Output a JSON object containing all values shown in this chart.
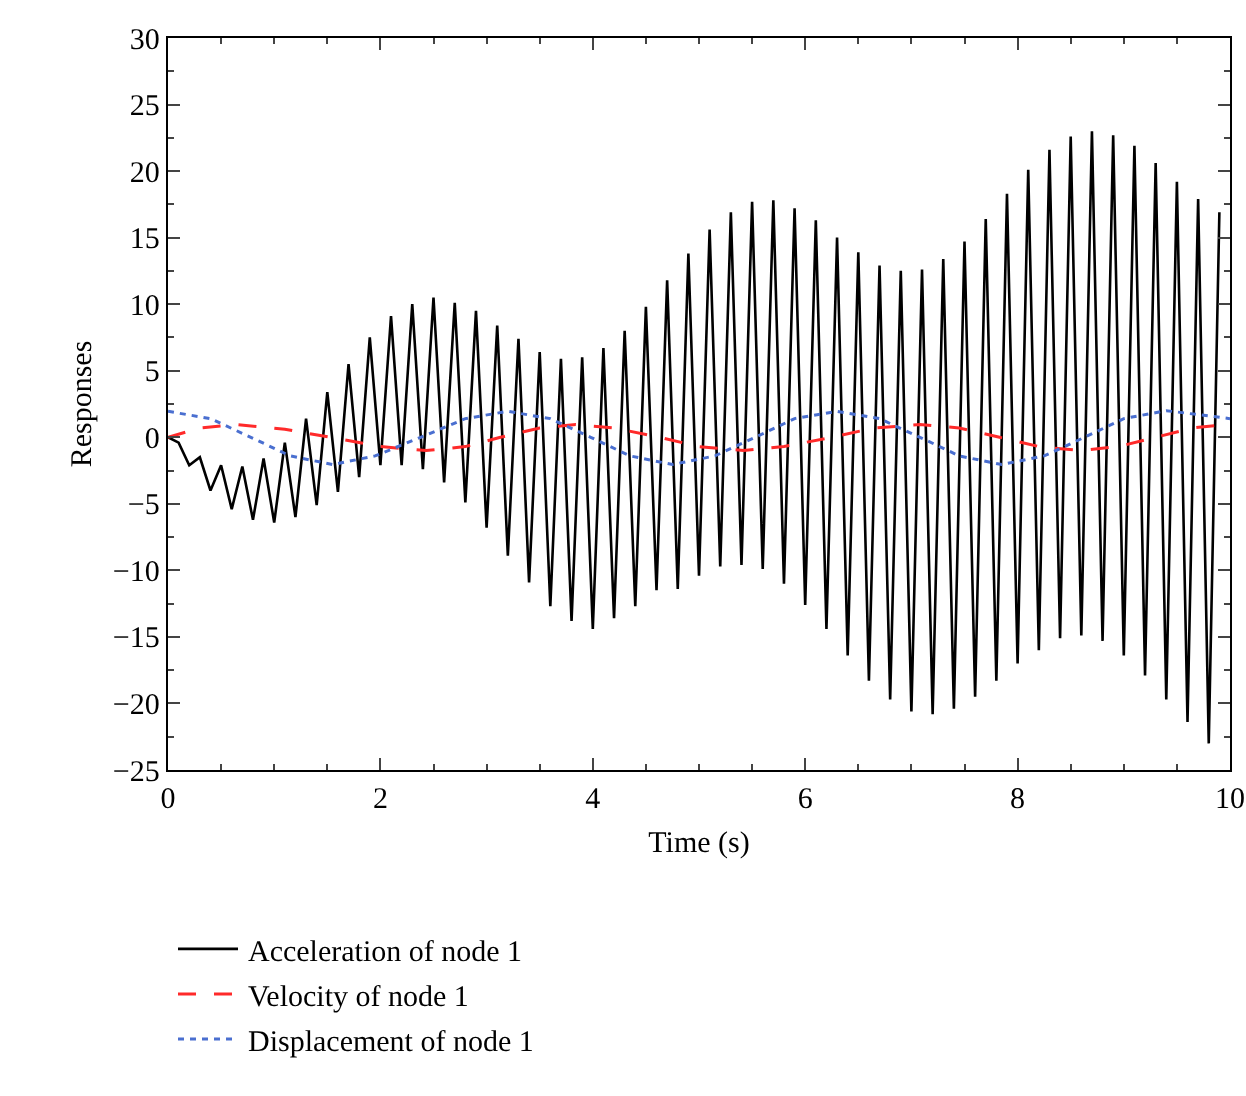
{
  "chart_data": {
    "type": "line",
    "xlabel": "Time (s)",
    "ylabel": "Responses",
    "xlim": [
      0,
      10
    ],
    "xticks": [
      0,
      2,
      4,
      6,
      8,
      10
    ],
    "ylim": [
      -25,
      30
    ],
    "yticks": [
      -25,
      -20,
      -15,
      -10,
      -5,
      0,
      5,
      10,
      15,
      20,
      25,
      30
    ],
    "grid": false,
    "legend": "bottom",
    "marker": "none",
    "series": [
      {
        "name": "Acceleration of node 1",
        "color": "#000000",
        "line_style": "solid",
        "x": [
          0,
          0.1,
          0.2,
          0.3,
          0.4,
          0.5,
          0.6,
          0.7,
          0.8,
          0.9,
          1.0,
          1.1,
          1.2,
          1.3,
          1.4,
          1.5,
          1.6,
          1.7,
          1.8,
          1.9,
          2.0,
          2.1,
          2.2,
          2.3,
          2.4,
          2.5,
          2.6,
          2.7,
          2.8,
          2.9,
          3.0,
          3.1,
          3.2,
          3.3,
          3.4,
          3.5,
          3.6,
          3.7,
          3.8,
          3.9,
          4.0,
          4.1,
          4.2,
          4.3,
          4.4,
          4.5,
          4.6,
          4.7,
          4.8,
          4.9,
          5.0,
          5.1,
          5.2,
          5.3,
          5.4,
          5.5,
          5.6,
          5.7,
          5.8,
          5.9,
          6.0,
          6.1,
          6.2,
          6.3,
          6.4,
          6.5,
          6.6,
          6.7,
          6.8,
          6.9,
          7.0,
          7.1,
          7.2,
          7.3,
          7.4,
          7.5,
          7.6,
          7.7,
          7.8,
          7.9,
          8.0,
          8.1,
          8.2,
          8.3,
          8.4,
          8.5,
          8.6,
          8.7,
          8.8,
          8.9,
          9.0,
          9.1,
          9.2,
          9.3,
          9.4,
          9.5,
          9.6,
          9.7,
          9.8,
          9.9
        ],
        "values": [
          0,
          -0.4,
          -2.1,
          -1.5,
          -4.0,
          -2.1,
          -5.4,
          -2.2,
          -6.2,
          -1.6,
          -6.4,
          -0.4,
          -6.0,
          1.4,
          -5.1,
          3.4,
          -4.1,
          5.5,
          -3.0,
          7.5,
          -2.1,
          9.1,
          -2.1,
          10.0,
          -2.4,
          10.5,
          -3.4,
          10.1,
          -4.9,
          9.5,
          -6.8,
          8.4,
          -8.9,
          7.4,
          -10.9,
          6.4,
          -12.7,
          5.9,
          -13.8,
          6.0,
          -14.4,
          6.7,
          -13.6,
          8.0,
          -12.7,
          9.8,
          -11.5,
          11.8,
          -11.4,
          13.8,
          -10.4,
          15.6,
          -9.7,
          16.9,
          -9.6,
          17.7,
          -9.9,
          17.8,
          -11.0,
          17.2,
          -12.6,
          16.3,
          -14.4,
          15.0,
          -16.4,
          13.9,
          -18.3,
          12.9,
          -19.7,
          12.5,
          -20.6,
          12.6,
          -20.8,
          13.4,
          -20.4,
          14.7,
          -19.5,
          16.4,
          -18.3,
          18.3,
          -17.0,
          20.1,
          -16.0,
          21.6,
          -15.1,
          22.6,
          -14.9,
          23.0,
          -15.3,
          22.7,
          -16.4,
          21.9,
          -17.9,
          20.6,
          -19.7,
          19.2,
          -21.4,
          17.9,
          -23.0,
          16.9
        ]
      },
      {
        "name": "Velocity of node 1",
        "color": "#ff2a2a",
        "line_style": "dashed",
        "x": [
          0,
          0.3,
          0.64,
          1.1,
          1.53,
          2.0,
          2.43,
          2.8,
          3.13,
          3.5,
          3.84,
          4.2,
          4.63,
          5.0,
          5.42,
          5.8,
          6.25,
          6.65,
          7.08,
          7.45,
          7.83,
          8.2,
          8.59,
          8.95,
          9.3,
          9.65,
          10
        ],
        "values": [
          0,
          0.7,
          0.95,
          0.6,
          0,
          -0.7,
          -1.0,
          -0.7,
          0,
          0.7,
          0.95,
          0.7,
          0,
          -0.7,
          -1.0,
          -0.7,
          0,
          0.7,
          0.95,
          0.7,
          0,
          -0.7,
          -1.0,
          -0.7,
          0,
          0.7,
          1.0
        ]
      },
      {
        "name": "Displacement of node 1",
        "color": "#4a6fd0",
        "line_style": "dotted",
        "x": [
          0,
          0.4,
          0.78,
          1.15,
          1.55,
          1.95,
          2.38,
          2.8,
          3.2,
          3.6,
          3.98,
          4.35,
          4.75,
          5.15,
          5.53,
          5.9,
          6.3,
          6.7,
          7.08,
          7.45,
          7.85,
          8.25,
          8.63,
          9.0,
          9.4,
          10
        ],
        "values": [
          1.95,
          1.4,
          0,
          -1.4,
          -2.05,
          -1.4,
          0,
          1.4,
          1.95,
          1.4,
          0,
          -1.4,
          -2.05,
          -1.4,
          0,
          1.4,
          1.95,
          1.4,
          0,
          -1.4,
          -2.05,
          -1.4,
          0,
          1.4,
          2.0,
          1.4
        ]
      }
    ]
  }
}
